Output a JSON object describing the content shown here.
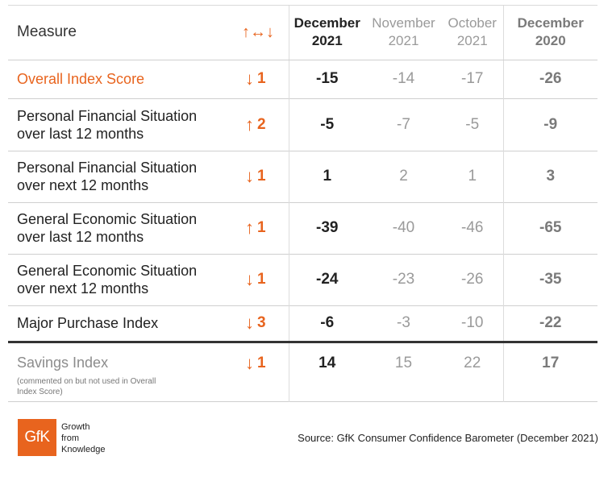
{
  "header": {
    "measure": "Measure",
    "change_icon": "↑↔↓",
    "columns": [
      {
        "month": "December",
        "year": "2021"
      },
      {
        "month": "November",
        "year": "2021"
      },
      {
        "month": "October",
        "year": "2021"
      },
      {
        "month": "December",
        "year": "2020"
      }
    ]
  },
  "rows": [
    {
      "line1": "Overall Index Score",
      "line2": "",
      "arrow": "↓",
      "change": "1",
      "values": [
        "-15",
        "-14",
        "-17",
        "-26"
      ]
    },
    {
      "line1": "Personal Financial Situation",
      "line2": "over last 12 months",
      "arrow": "↑",
      "change": "2",
      "values": [
        "-5",
        "-7",
        "-5",
        "-9"
      ]
    },
    {
      "line1": "Personal Financial Situation",
      "line2": "over next 12 months",
      "arrow": "↓",
      "change": "1",
      "values": [
        "1",
        "2",
        "1",
        "3"
      ]
    },
    {
      "line1": "General Economic Situation",
      "line2": "over last 12 months",
      "arrow": "↑",
      "change": "1",
      "values": [
        "-39",
        "-40",
        "-46",
        "-65"
      ]
    },
    {
      "line1": "General Economic Situation",
      "line2": "over next 12 months",
      "arrow": "↓",
      "change": "1",
      "values": [
        "-24",
        "-23",
        "-26",
        "-35"
      ]
    },
    {
      "line1": "Major Purchase Index",
      "line2": "",
      "arrow": "↓",
      "change": "3",
      "values": [
        "-6",
        "-3",
        "-10",
        "-22"
      ]
    },
    {
      "line1": "Savings Index",
      "line2": "",
      "arrow": "↓",
      "change": "1",
      "values": [
        "14",
        "15",
        "22",
        "17"
      ],
      "note": "(commented on but not used in Overall Index Score)"
    }
  ],
  "footer": {
    "logo_text": "GfK",
    "tagline": [
      "Growth",
      "from",
      "Knowledge"
    ],
    "source": "Source: GfK Consumer Confidence Barometer (December 2021)"
  },
  "colors": {
    "accent": "#e8641e",
    "muted": "#8c8c8c",
    "text": "#222222"
  }
}
